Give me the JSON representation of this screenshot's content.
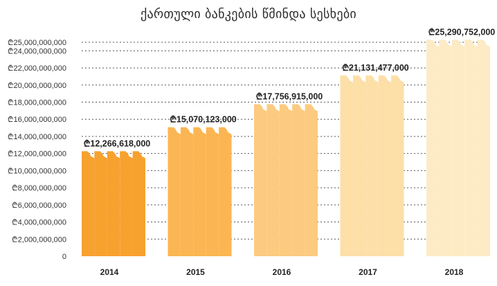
{
  "chart_data": {
    "type": "bar",
    "title": "ქართული ბანკების წმინდა სესხები",
    "categories": [
      "2014",
      "2015",
      "2016",
      "2017",
      "2018"
    ],
    "values": [
      12266618000,
      15070123000,
      17756915000,
      21131477000,
      25290752000
    ],
    "value_labels": [
      "₾12,266,618,000",
      "₾15,070,123,000",
      "₾17,756,915,000",
      "₾21,131,477,000",
      "₾25,290,752,000"
    ],
    "bar_colors": [
      "#F7A12F",
      "#FBB653",
      "#FCCB80",
      "#FDDFA8",
      "#FDEBC5"
    ],
    "ylim": [
      0,
      25000000000
    ],
    "y_ticks": [
      0,
      2000000000,
      4000000000,
      6000000000,
      8000000000,
      10000000000,
      12000000000,
      14000000000,
      16000000000,
      18000000000,
      20000000000,
      22000000000,
      24000000000,
      25000000000
    ],
    "y_tick_labels": [
      "0",
      "₾2,000,000,000",
      "₾4,000,000,000",
      "₾6,000,000,000",
      "₾8,000,000,000",
      "₾10,000,000,000",
      "₾12,000,000,000",
      "₾14,000,000,000",
      "₾16,000,000,000",
      "₾18,000,000,000",
      "₾20,000,000,000",
      "₾22,000,000,000",
      "₾24,000,000,000",
      "₾25,000,000,000"
    ],
    "grid": true,
    "xlabel": "",
    "ylabel": ""
  }
}
